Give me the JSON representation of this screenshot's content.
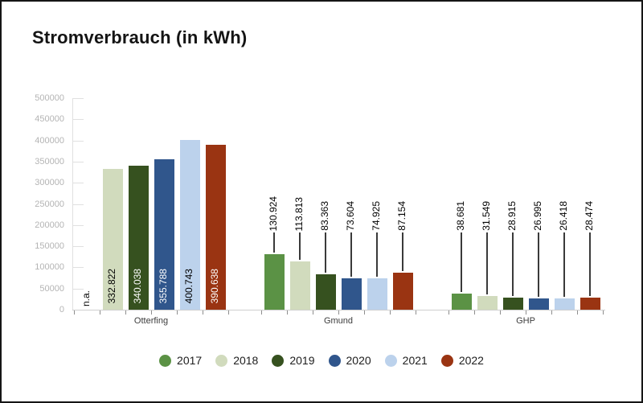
{
  "chart_data": {
    "type": "bar",
    "title": "Stromverbrauch (in kWh)",
    "categories": [
      "Otterfing",
      "Gmund",
      "GHP"
    ],
    "na_label": "n.a.",
    "ylim": [
      0,
      500000
    ],
    "yticks": [
      "0",
      "50000",
      "100000",
      "150000",
      "200000",
      "250000",
      "300000",
      "350000",
      "400000",
      "450000",
      "500000"
    ],
    "grid": false,
    "legend_position": "bottom",
    "series": [
      {
        "name": "2017",
        "color": "#5b9245",
        "label_color": "#ffffff",
        "values": [
          null,
          130924,
          38681
        ],
        "labels": [
          "n.a.",
          "130.924",
          "38.681"
        ]
      },
      {
        "name": "2018",
        "color": "#d1dbbd",
        "label_color": "#000000",
        "values": [
          332822,
          113813,
          31549
        ],
        "labels": [
          "332.822",
          "113.813",
          "31.549"
        ]
      },
      {
        "name": "2019",
        "color": "#36511f",
        "label_color": "#ffffff",
        "values": [
          340038,
          83363,
          28915
        ],
        "labels": [
          "340.038",
          "83.363",
          "28.915"
        ]
      },
      {
        "name": "2020",
        "color": "#30568c",
        "label_color": "#ffffff",
        "values": [
          355788,
          73604,
          26995
        ],
        "labels": [
          "355.788",
          "73.604",
          "26.995"
        ]
      },
      {
        "name": "2021",
        "color": "#bcd2ec",
        "label_color": "#000000",
        "values": [
          400743,
          74925,
          26418
        ],
        "labels": [
          "400.743",
          "74.925",
          "26.418"
        ]
      },
      {
        "name": "2022",
        "color": "#9a3412",
        "label_color": "#ffffff",
        "values": [
          390638,
          87154,
          28474
        ],
        "labels": [
          "390.638",
          "87.154",
          "28.474"
        ]
      }
    ]
  }
}
